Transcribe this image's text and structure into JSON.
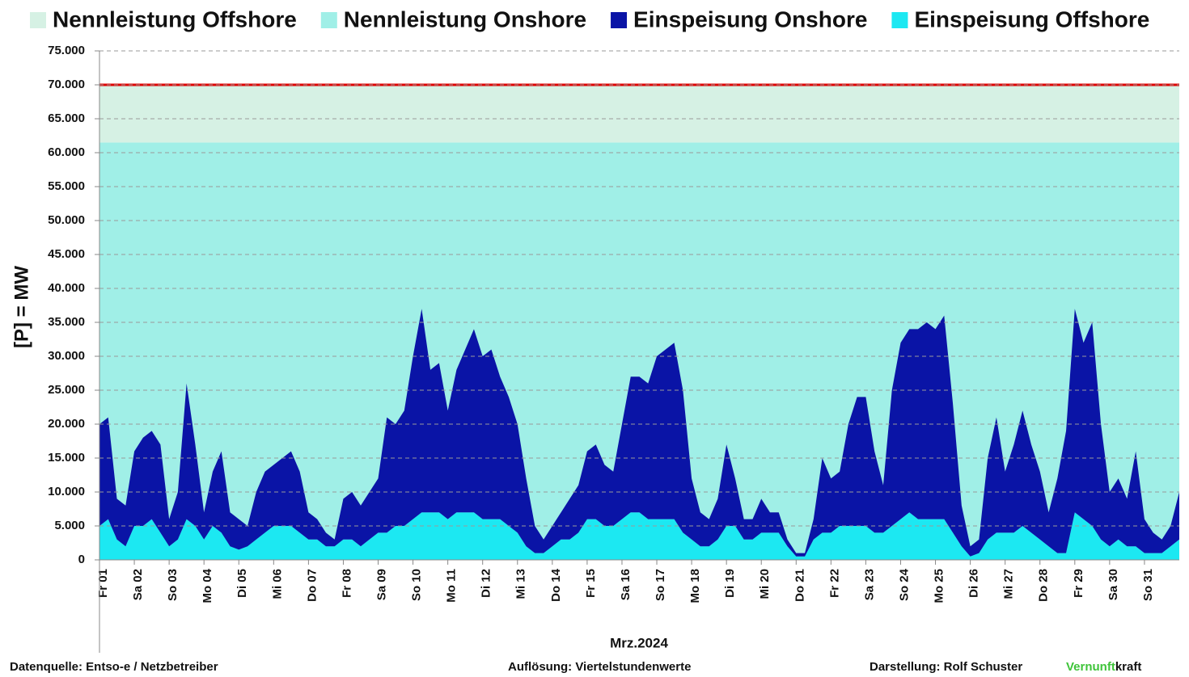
{
  "chart_data": {
    "type": "stacked_area",
    "y_label": "[P] = MW",
    "x_label": "Mrz.2024",
    "xlim": [
      0,
      31
    ],
    "ylim": [
      0,
      75000
    ],
    "yticks": [
      0,
      {
        "value": 5000,
        "label": "5.000"
      },
      {
        "value": 10000,
        "label": "10.000"
      },
      {
        "value": 15000,
        "label": "15.000"
      },
      {
        "value": 20000,
        "label": "20.000"
      },
      {
        "value": 25000,
        "label": "25.000"
      },
      {
        "value": 30000,
        "label": "30.000"
      },
      {
        "value": 35000,
        "label": "35.000"
      },
      {
        "value": 40000,
        "label": "40.000"
      },
      {
        "value": 45000,
        "label": "45.000"
      },
      {
        "value": 50000,
        "label": "50.000"
      },
      {
        "value": 55000,
        "label": "55.000"
      },
      {
        "value": 60000,
        "label": "60.000"
      },
      {
        "value": 65000,
        "label": "65.000"
      },
      {
        "value": 70000,
        "label": "70.000"
      },
      {
        "value": 75000,
        "label": "75.000"
      }
    ],
    "xticks": [
      {
        "value": 0,
        "label": "Fr 01"
      },
      {
        "value": 1,
        "label": "Sa 02"
      },
      {
        "value": 2,
        "label": "So 03"
      },
      {
        "value": 3,
        "label": "Mo 04"
      },
      {
        "value": 4,
        "label": "Di 05"
      },
      {
        "value": 5,
        "label": "Mi 06"
      },
      {
        "value": 6,
        "label": "Do 07"
      },
      {
        "value": 7,
        "label": "Fr 08"
      },
      {
        "value": 8,
        "label": "Sa 09"
      },
      {
        "value": 9,
        "label": "So 10"
      },
      {
        "value": 10,
        "label": "Mo 11"
      },
      {
        "value": 11,
        "label": "Di 12"
      },
      {
        "value": 12,
        "label": "Mi 13"
      },
      {
        "value": 13,
        "label": "Do 14"
      },
      {
        "value": 14,
        "label": "Fr 15"
      },
      {
        "value": 15,
        "label": "Sa 16"
      },
      {
        "value": 16,
        "label": "So 17"
      },
      {
        "value": 17,
        "label": "Mo 18"
      },
      {
        "value": 18,
        "label": "Di 19"
      },
      {
        "value": 19,
        "label": "Mi 20"
      },
      {
        "value": 20,
        "label": "Do 21"
      },
      {
        "value": 21,
        "label": "Fr 22"
      },
      {
        "value": 22,
        "label": "Sa 23"
      },
      {
        "value": 23,
        "label": "So 24"
      },
      {
        "value": 24,
        "label": "Mo 25"
      },
      {
        "value": 25,
        "label": "Di 26"
      },
      {
        "value": 26,
        "label": "Mi 27"
      },
      {
        "value": 27,
        "label": "Do 28"
      },
      {
        "value": 28,
        "label": "Fr 29"
      },
      {
        "value": 29,
        "label": "Sa 30"
      },
      {
        "value": 30,
        "label": "So 31"
      }
    ],
    "grid": true,
    "legend": "top",
    "x": [
      0,
      0.25,
      0.5,
      0.75,
      1,
      1.25,
      1.5,
      1.75,
      2,
      2.25,
      2.5,
      2.75,
      3,
      3.25,
      3.5,
      3.75,
      4,
      4.25,
      4.5,
      4.75,
      5,
      5.25,
      5.5,
      5.75,
      6,
      6.25,
      6.5,
      6.75,
      7,
      7.25,
      7.5,
      7.75,
      8,
      8.25,
      8.5,
      8.75,
      9,
      9.25,
      9.5,
      9.75,
      10,
      10.25,
      10.5,
      10.75,
      11,
      11.25,
      11.5,
      11.75,
      12,
      12.25,
      12.5,
      12.75,
      13,
      13.25,
      13.5,
      13.75,
      14,
      14.25,
      14.5,
      14.75,
      15,
      15.25,
      15.5,
      15.75,
      16,
      16.25,
      16.5,
      16.75,
      17,
      17.25,
      17.5,
      17.75,
      18,
      18.25,
      18.5,
      18.75,
      19,
      19.25,
      19.5,
      19.75,
      20,
      20.25,
      20.5,
      20.75,
      21,
      21.25,
      21.5,
      21.75,
      22,
      22.25,
      22.5,
      22.75,
      23,
      23.25,
      23.5,
      23.75,
      24,
      24.25,
      24.5,
      24.75,
      25,
      25.25,
      25.5,
      25.75,
      26,
      26.25,
      26.5,
      26.75,
      27,
      27.25,
      27.5,
      27.75,
      28,
      28.25,
      28.5,
      28.75,
      29,
      29.25,
      29.5,
      29.75,
      30,
      30.25,
      30.5,
      30.75,
      31
    ],
    "series": [
      {
        "name": "Nennleistung Offshore",
        "color": "#d6f1e4",
        "edge_color": "#e00000",
        "stack": "nennleistung",
        "x": [
          0,
          31
        ],
        "values": [
          8500,
          8500
        ]
      },
      {
        "name": "Nennleistung Onshore",
        "color": "#a0efe7",
        "stack": "nennleistung",
        "x": [
          0,
          31
        ],
        "values": [
          61500,
          61500
        ]
      },
      {
        "name": "Einspeisung Onshore",
        "color": "#0a14a6",
        "stack": "einspeisung",
        "values": [
          15000,
          15000,
          6000,
          6000,
          11000,
          13000,
          13000,
          13000,
          4000,
          7000,
          20000,
          12000,
          4000,
          8000,
          12000,
          5000,
          4500,
          3000,
          7000,
          9000,
          9000,
          10000,
          11000,
          9000,
          4000,
          3000,
          2000,
          1000,
          6000,
          7000,
          6000,
          7000,
          8000,
          17000,
          15000,
          17000,
          24000,
          30000,
          21000,
          22000,
          16000,
          21000,
          24000,
          27000,
          24000,
          25000,
          21000,
          19000,
          16000,
          10000,
          4000,
          2000,
          3000,
          4000,
          6000,
          7000,
          10000,
          11000,
          9000,
          8000,
          14000,
          20000,
          20000,
          20000,
          24000,
          25000,
          26000,
          21000,
          9000,
          5000,
          4000,
          6000,
          12000,
          7000,
          3000,
          3000,
          5000,
          3000,
          3000,
          1000,
          500,
          500,
          3000,
          11000,
          8000,
          8000,
          15000,
          19000,
          19000,
          12000,
          7000,
          20000,
          26000,
          27000,
          28000,
          29000,
          28000,
          30000,
          19000,
          6000,
          1500,
          2000,
          12000,
          17000,
          9000,
          13000,
          17000,
          13000,
          10000,
          5000,
          11000,
          18000,
          30000,
          26000,
          30000,
          17000,
          8000,
          9000,
          7000,
          14000,
          5000,
          3000,
          2000,
          3000,
          7000
        ]
      },
      {
        "name": "Einspeisung Offshore",
        "color": "#1ce8f2",
        "stack": "einspeisung",
        "values": [
          5000,
          6000,
          3000,
          2000,
          5000,
          5000,
          6000,
          4000,
          2000,
          3000,
          6000,
          5000,
          3000,
          5000,
          4000,
          2000,
          1500,
          2000,
          3000,
          4000,
          5000,
          5000,
          5000,
          4000,
          3000,
          3000,
          2000,
          2000,
          3000,
          3000,
          2000,
          3000,
          4000,
          4000,
          5000,
          5000,
          6000,
          7000,
          7000,
          7000,
          6000,
          7000,
          7000,
          7000,
          6000,
          6000,
          6000,
          5000,
          4000,
          2000,
          1000,
          1000,
          2000,
          3000,
          3000,
          4000,
          6000,
          6000,
          5000,
          5000,
          6000,
          7000,
          7000,
          6000,
          6000,
          6000,
          6000,
          4000,
          3000,
          2000,
          2000,
          3000,
          5000,
          5000,
          3000,
          3000,
          4000,
          4000,
          4000,
          2000,
          500,
          500,
          3000,
          4000,
          4000,
          5000,
          5000,
          5000,
          5000,
          4000,
          4000,
          5000,
          6000,
          7000,
          6000,
          6000,
          6000,
          6000,
          4000,
          2000,
          500,
          1000,
          3000,
          4000,
          4000,
          4000,
          5000,
          4000,
          3000,
          2000,
          1000,
          1000,
          7000,
          6000,
          5000,
          3000,
          2000,
          3000,
          2000,
          2000,
          1000,
          1000,
          1000,
          2000,
          3000
        ]
      }
    ]
  },
  "footer": {
    "source": "Datenquelle:  Entso-e  / Netzbetreiber",
    "resolution": "Auflösung: Viertelstundenwerte",
    "author": "Darstellung:  Rolf Schuster",
    "brand": [
      "Vernunft",
      "kraft"
    ]
  }
}
